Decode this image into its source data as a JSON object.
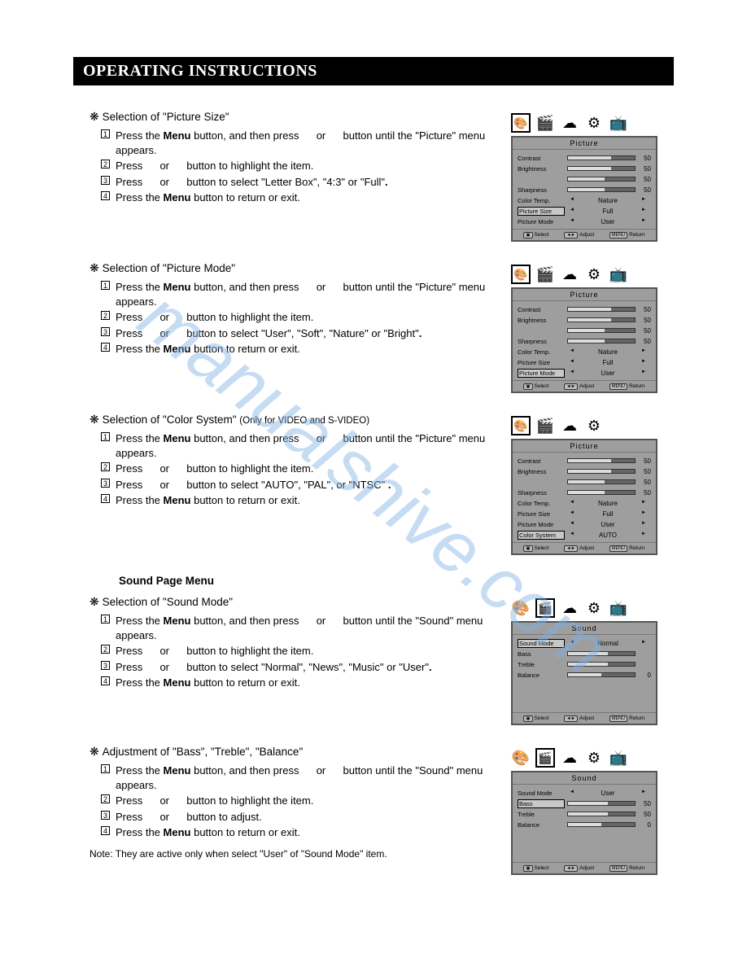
{
  "header": {
    "title": "OPERATING INSTRUCTIONS"
  },
  "watermark": "manualshive.com",
  "sections": {
    "picsize": {
      "title": "Selection of \"Picture Size\"",
      "steps": [
        "Press the <b>Menu</b> button, and then press <span class=gap></span> or <span class=gap></span> button until the \"Picture\" menu appears.",
        "Press <span class=gap></span> or <span class=gap></span> button to highlight the item.",
        "Press <span class=gap></span> or <span class=gap></span> button to select \"Letter Box\", \"4:3\" or \"Full\"<b>.</b>",
        "Press the <b>Menu</b> button to return or exit."
      ]
    },
    "picmode": {
      "title": "Selection of \"Picture Mode\"",
      "steps": [
        "Press the <b>Menu</b> button, and then press <span class=gap></span> or <span class=gap></span> button until the \"Picture\" menu appears.",
        "Press <span class=gap></span> or <span class=gap></span> button to highlight the item.",
        "Press <span class=gap></span> or <span class=gap></span> button to select \"User\", \"Soft\", \"Nature\" or \"Bright\"<b>.</b>",
        "Press the <b>Menu</b> button to return or exit."
      ]
    },
    "colsys": {
      "title": "Selection of \"Color System\"",
      "subtitle": "(Only for VIDEO and S-VIDEO)",
      "steps": [
        "Press the <b>Menu</b> button, and then press <span class=gap></span> or <span class=gap></span> button until the \"Picture\" menu appears.",
        "Press <span class=gap></span> or <span class=gap></span> button to highlight the item.",
        "Press <span class=gap></span> or <span class=gap></span> button to select \"AUTO\", \"PAL\", or \"NTSC\" <b>.</b>",
        "Press the <b>Menu</b> button to return or exit."
      ]
    },
    "soundpage": "Sound Page Menu",
    "sndmode": {
      "title": "Selection of \"Sound Mode\"",
      "steps": [
        "Press the <b>Menu</b> button, and then press <span class=gap></span> or <span class=gap></span> button until the \"Sound\" menu appears.",
        "Press <span class=gap></span> or <span class=gap></span> button to highlight the item.",
        "Press <span class=gap></span> or <span class=gap></span> button to select \"Normal\", \"News\", \"Music\" or \"User\"<b>.</b>",
        "Press the <b>Menu</b> button to return or exit."
      ]
    },
    "bass": {
      "title": "Adjustment of \"Bass\", \"Treble\", \"Balance\"",
      "steps": [
        "Press the <b>Menu</b> button, and then press <span class=gap></span> or <span class=gap></span> button until the \"Sound\" menu appears.",
        "Press <span class=gap></span> or <span class=gap></span> button to highlight the item.",
        "Press <span class=gap></span> or <span class=gap></span> button to adjust.",
        "Press the <b>Menu</b> button to return or exit."
      ]
    },
    "note": "Note: They are active only when select \"User\"  of \"Sound Mode\" item."
  },
  "osd": {
    "picture": {
      "title": "Picture",
      "sliders": [
        {
          "label": "Contrast",
          "val": "50",
          "fill": 65
        },
        {
          "label": "Brightness",
          "val": "50",
          "fill": 65
        },
        {
          "label": "",
          "val": "50",
          "fill": 55
        },
        {
          "label": "Sharpness",
          "val": "50",
          "fill": 55
        }
      ],
      "opts_a": [
        {
          "label": "Color Temp.",
          "val": "Nature"
        },
        {
          "label": "Picture Size",
          "val": "Full",
          "hl": true
        },
        {
          "label": "Picture Mode",
          "val": "User"
        }
      ],
      "opts_b": [
        {
          "label": "Color Temp.",
          "val": "Nature"
        },
        {
          "label": "Picture Size",
          "val": "Full"
        },
        {
          "label": "Picture Mode",
          "val": "User",
          "hl": true
        }
      ],
      "opts_c": [
        {
          "label": "Color Temp.",
          "val": "Nature"
        },
        {
          "label": "Picture Size",
          "val": "Full"
        },
        {
          "label": "Picture Mode",
          "val": "User"
        },
        {
          "label": "Color System",
          "val": "AUTO",
          "hl": true
        }
      ]
    },
    "sound": {
      "title": "Sound",
      "a_rows": [
        {
          "type": "opt",
          "label": "Sound Mode",
          "val": "Normal",
          "hl": true
        },
        {
          "type": "slider",
          "label": "Bass",
          "val": "",
          "fill": 60
        },
        {
          "type": "slider",
          "label": "Treble",
          "val": "",
          "fill": 60
        },
        {
          "type": "slider",
          "label": "Balance",
          "val": "0",
          "fill": 50
        }
      ],
      "b_rows": [
        {
          "type": "opt",
          "label": "Sound Mode",
          "val": "User"
        },
        {
          "type": "slider",
          "label": "Bass",
          "val": "50",
          "fill": 60,
          "hl": true
        },
        {
          "type": "slider",
          "label": "Treble",
          "val": "50",
          "fill": 60
        },
        {
          "type": "slider",
          "label": "Balance",
          "val": "0",
          "fill": 50
        }
      ]
    },
    "footer": {
      "select": "Select",
      "adjust": "Adjust",
      "return": "Return"
    }
  },
  "colors": {
    "osd_bg": "#9e9e9e",
    "watermark": "#7fb3e6"
  }
}
